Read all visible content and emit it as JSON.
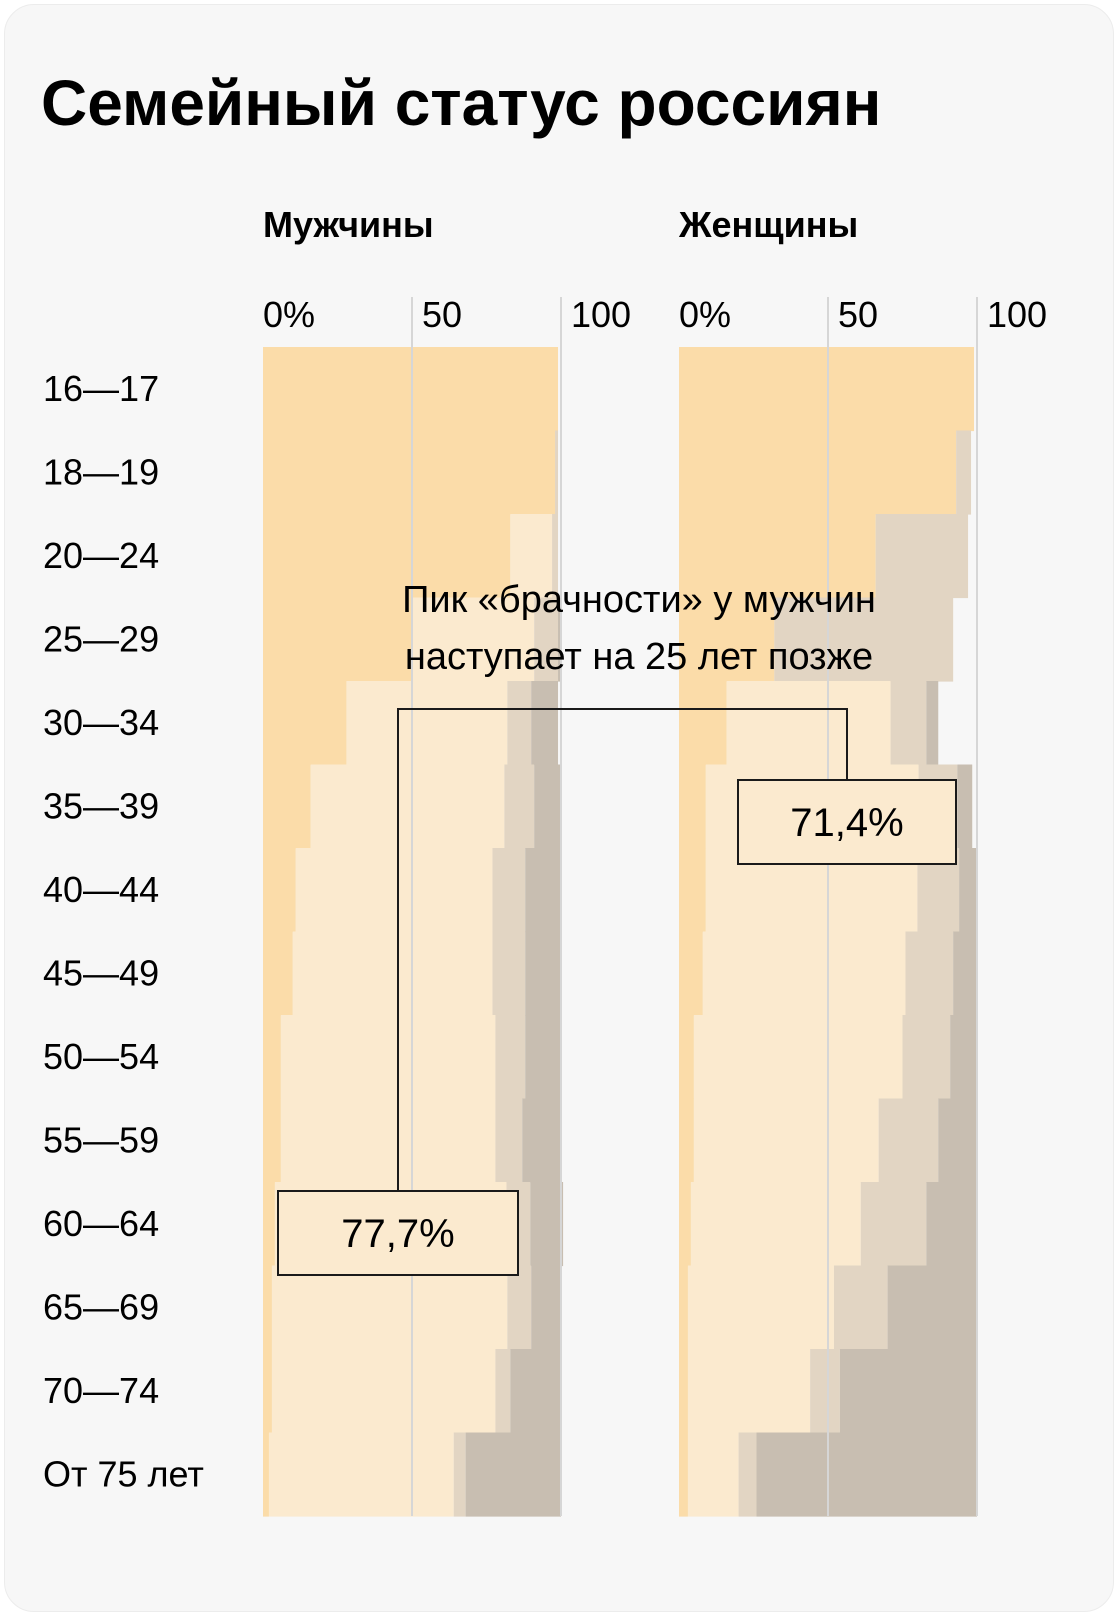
{
  "title": "Семейный статус россиян",
  "chart_data": {
    "type": "bar",
    "stacked": true,
    "orientation": "horizontal",
    "title": "Семейный статус россиян",
    "categories": [
      "16—17",
      "18—19",
      "20—24",
      "25—29",
      "30—34",
      "35—39",
      "40—44",
      "45—49",
      "50—54",
      "55—59",
      "60—64",
      "65—69",
      "70—74",
      "От 75 лет"
    ],
    "xlim": [
      0,
      100
    ],
    "x_ticks": [
      "0%",
      "50",
      "100"
    ],
    "grid": true,
    "colors": [
      "#fbdca9",
      "#fbeacf",
      "#e2d5c3",
      "#c8beb1"
    ],
    "panels": [
      {
        "name": "Мужчины",
        "series": [
          {
            "values": [
              99,
              98,
              83,
              50,
              28,
              16,
              11,
              10,
              6,
              6,
              4,
              3,
              3,
              2
            ]
          },
          {
            "values": [
              0,
              0,
              14,
              41,
              54,
              65,
              66,
              67,
              72,
              72,
              77.7,
              79,
              75,
              62
            ]
          },
          {
            "values": [
              0,
              1,
              2,
              8,
              8,
              10,
              11,
              11,
              10,
              9,
              8,
              8,
              5,
              4
            ]
          },
          {
            "values": [
              0,
              0,
              0,
              1,
              9,
              9,
              12,
              12,
              12,
              13,
              11,
              10,
              17,
              32
            ]
          }
        ]
      },
      {
        "name": "Женщины",
        "series": [
          {
            "values": [
              99,
              93,
              66,
              32,
              16,
              9,
              9,
              8,
              5,
              5,
              4,
              3,
              3,
              3
            ]
          },
          {
            "values": [
              0,
              0,
              0,
              0,
              55,
              71.4,
              71,
              68,
              70,
              62,
              57,
              49,
              41,
              17
            ]
          },
          {
            "values": [
              0,
              5,
              31,
              60,
              12,
              13,
              14,
              16,
              16,
              20,
              22,
              18,
              10,
              6
            ]
          },
          {
            "values": [
              0,
              0,
              0,
              0,
              4,
              5,
              6,
              8,
              9,
              13,
              17,
              30,
              46,
              74
            ]
          }
        ]
      }
    ],
    "annotation": "Пик «брачности» у мужчин наступает на 25 лет позже",
    "annotation_lines": [
      "Пик «брачности» у мужчин",
      "наступает на 25 лет позже"
    ],
    "callouts": [
      {
        "panel": "Мужчины",
        "category": "60—64",
        "label": "77,7%"
      },
      {
        "panel": "Женщины",
        "category": "35—39",
        "label": "71,4%"
      }
    ]
  }
}
